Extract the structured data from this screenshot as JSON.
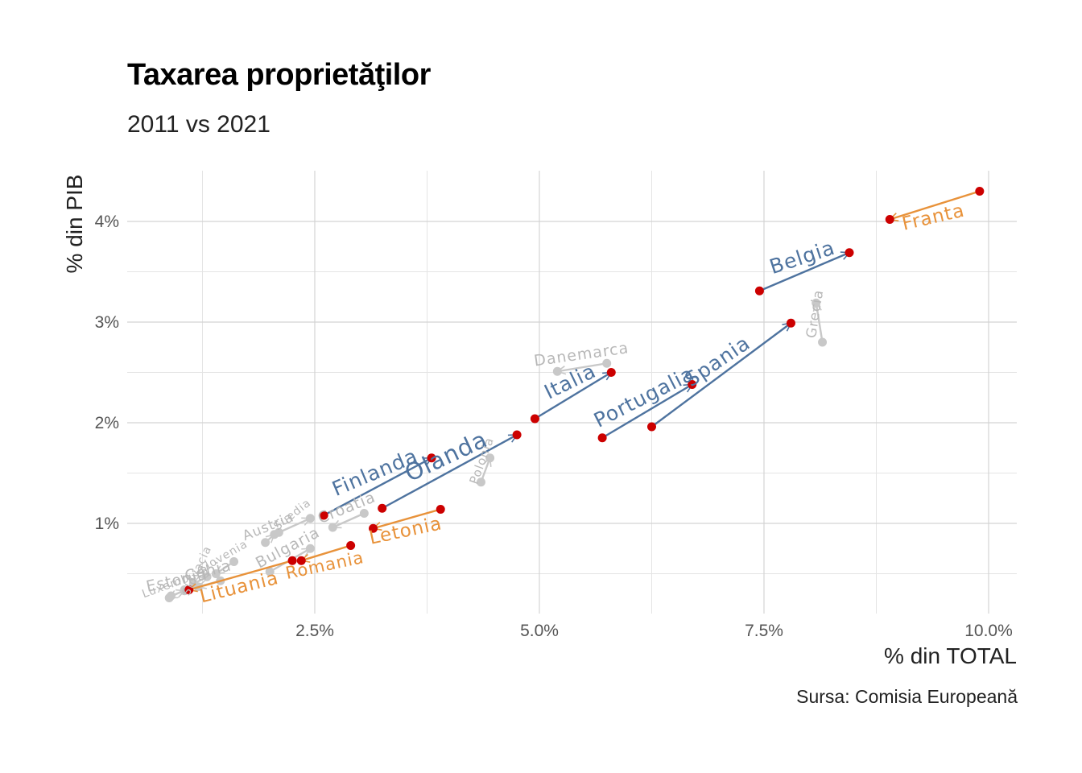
{
  "title": "Taxarea proprietăţilor",
  "subtitle": "2011 vs 2021",
  "caption": "Sursa: Comisia Europeană",
  "colors": {
    "up": "#4e739f",
    "down": "#e8923a",
    "other": "#c8c8c8",
    "other_text": "#b8b8b8",
    "point": "#cc0000",
    "grid_major": "#d4d4d4",
    "grid_minor": "#e4e4e4"
  },
  "chart_data": {
    "type": "scatter",
    "title": "Taxarea proprietăţilor",
    "subtitle": "2011 vs 2021",
    "xlabel": "% din TOTAL",
    "ylabel": "% din PIB",
    "x_ticks": [
      "2.5%",
      "5.0%",
      "7.5%",
      "10.0%"
    ],
    "y_ticks": [
      "1%",
      "2%",
      "3%",
      "4%"
    ],
    "xlim": [
      0.6,
      10.5
    ],
    "ylim": [
      0.12,
      4.5
    ],
    "grid": true,
    "series": [
      {
        "name": "Franta",
        "group": "down",
        "x": [
          9.9,
          8.9
        ],
        "y": [
          4.3,
          4.02
        ],
        "label_rot": -13,
        "label_size": 23
      },
      {
        "name": "Belgia",
        "group": "up",
        "x": [
          7.45,
          8.45
        ],
        "y": [
          3.31,
          3.69
        ],
        "label_rot": -18,
        "label_size": 25
      },
      {
        "name": "Spania",
        "group": "up",
        "x": [
          6.25,
          7.8
        ],
        "y": [
          1.96,
          2.99
        ],
        "label_rot": -34,
        "label_size": 25
      },
      {
        "name": "Portugalia",
        "group": "up",
        "x": [
          5.7,
          6.7
        ],
        "y": [
          1.85,
          2.38
        ],
        "label_rot": -27,
        "label_size": 25
      },
      {
        "name": "Italia",
        "group": "up",
        "x": [
          4.95,
          5.8
        ],
        "y": [
          2.04,
          2.5
        ],
        "label_rot": -26,
        "label_size": 25
      },
      {
        "name": "Olanda",
        "group": "up",
        "x": [
          3.25,
          4.75
        ],
        "y": [
          1.15,
          1.88
        ],
        "label_rot": -25,
        "label_size": 29
      },
      {
        "name": "Finlanda",
        "group": "up",
        "x": [
          2.6,
          3.8
        ],
        "y": [
          1.08,
          1.65
        ],
        "label_rot": -23,
        "label_size": 25
      },
      {
        "name": "Letonia",
        "group": "down",
        "x": [
          3.9,
          3.15
        ],
        "y": [
          1.14,
          0.95
        ],
        "label_rot": -12,
        "label_size": 23
      },
      {
        "name": "Romania",
        "group": "down",
        "x": [
          2.9,
          2.35
        ],
        "y": [
          0.78,
          0.63
        ],
        "label_rot": -12,
        "label_size": 21
      },
      {
        "name": "Lituania",
        "group": "down",
        "x": [
          2.25,
          1.1
        ],
        "y": [
          0.63,
          0.34
        ],
        "label_rot": -14,
        "label_size": 23
      },
      {
        "name": "Danemarca",
        "group": "other",
        "x": [
          5.75,
          5.2
        ],
        "y": [
          2.59,
          2.51
        ],
        "label_rot": -8,
        "label_size": 19
      },
      {
        "name": "Grecia",
        "group": "other",
        "x": [
          8.15,
          8.08
        ],
        "y": [
          2.8,
          3.19
        ],
        "label_rot": -81,
        "label_size": 17
      },
      {
        "name": "Polonia",
        "group": "other",
        "x": [
          4.35,
          4.45
        ],
        "y": [
          1.41,
          1.65
        ],
        "label_rot": -70,
        "label_size": 15
      },
      {
        "name": "Suedia",
        "group": "other",
        "x": [
          2.1,
          2.45
        ],
        "y": [
          0.91,
          1.05
        ],
        "label_rot": -38,
        "label_size": 14
      },
      {
        "name": "Austria",
        "group": "other",
        "x": [
          1.95,
          2.05
        ],
        "y": [
          0.81,
          0.89
        ],
        "label_rot": -22,
        "label_size": 17
      },
      {
        "name": "Bulgaria",
        "group": "other",
        "x": [
          2.0,
          2.45
        ],
        "y": [
          0.52,
          0.75
        ],
        "label_rot": -28,
        "label_size": 19
      },
      {
        "name": "Croatia",
        "group": "other",
        "x": [
          3.05,
          2.7
        ],
        "y": [
          1.1,
          0.96
        ],
        "label_rot": -22,
        "label_size": 19
      },
      {
        "name": "Slovenia",
        "group": "other",
        "x": [
          1.6,
          1.4
        ],
        "y": [
          0.62,
          0.5
        ],
        "label_rot": -30,
        "label_size": 14
      },
      {
        "name": "Slovacia",
        "group": "other",
        "x": [
          1.3,
          1.15
        ],
        "y": [
          0.47,
          0.4
        ],
        "label_rot": -65,
        "label_size": 14
      },
      {
        "name": "Cehia",
        "group": "other",
        "x": [
          1.45,
          1.2
        ],
        "y": [
          0.43,
          0.37
        ],
        "label_rot": -14,
        "label_size": 19
      },
      {
        "name": "Estonia",
        "group": "other",
        "x": [
          0.9,
          1.05
        ],
        "y": [
          0.28,
          0.33
        ],
        "label_rot": -12,
        "label_size": 19
      },
      {
        "name": "Luxemburg",
        "group": "other",
        "x": [
          1.05,
          0.88
        ],
        "y": [
          0.34,
          0.26
        ],
        "label_rot": -20,
        "label_size": 14
      }
    ],
    "highlighted_points": [
      [
        9.9,
        4.3
      ],
      [
        8.9,
        4.02
      ],
      [
        7.45,
        3.31
      ],
      [
        8.45,
        3.69
      ],
      [
        6.25,
        1.96
      ],
      [
        7.8,
        2.99
      ],
      [
        5.7,
        1.85
      ],
      [
        6.7,
        2.38
      ],
      [
        4.95,
        2.04
      ],
      [
        5.8,
        2.5
      ],
      [
        3.25,
        1.15
      ],
      [
        4.75,
        1.88
      ],
      [
        2.6,
        1.08
      ],
      [
        3.8,
        1.65
      ],
      [
        3.9,
        1.14
      ],
      [
        3.15,
        0.95
      ],
      [
        2.9,
        0.78
      ],
      [
        2.35,
        0.63
      ],
      [
        2.25,
        0.63
      ],
      [
        1.1,
        0.34
      ]
    ]
  }
}
